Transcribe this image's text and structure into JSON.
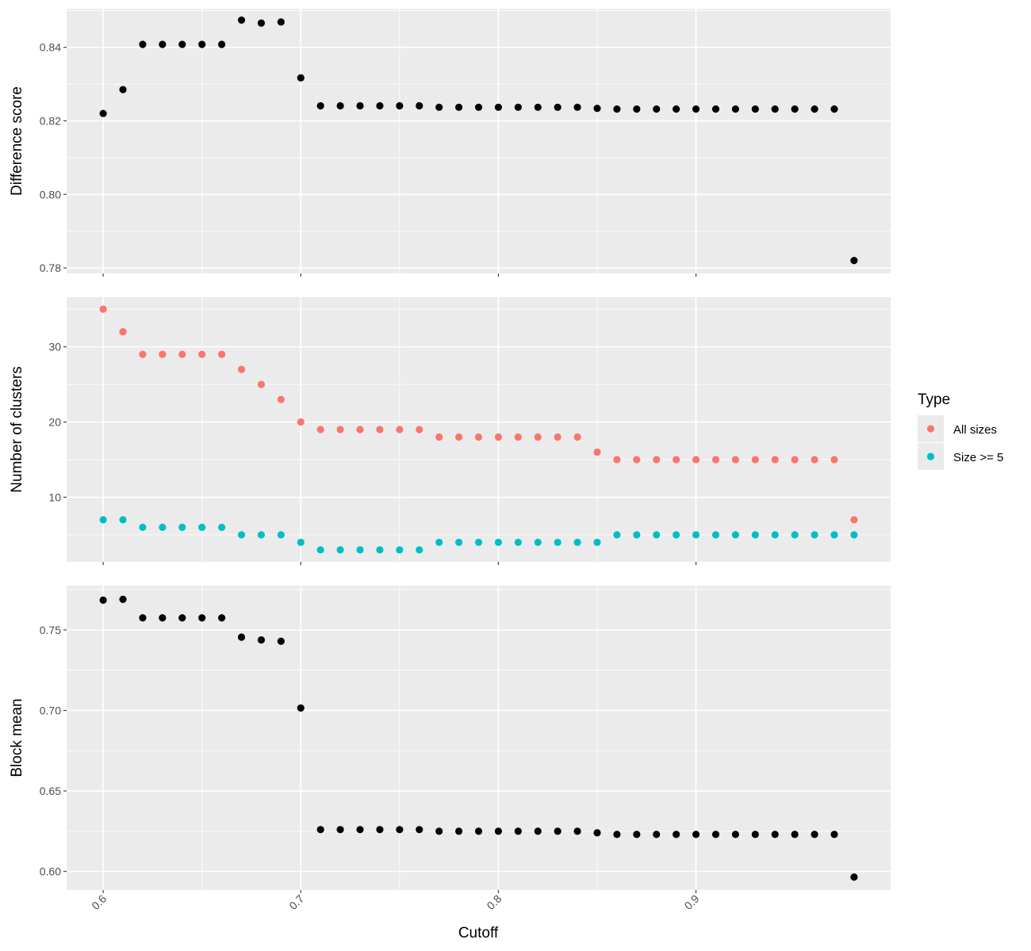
{
  "chart_data": [
    {
      "type": "scatter",
      "panel": "top",
      "ylabel": "Difference score",
      "xlim": [
        0.5815,
        0.9985
      ],
      "ylim": [
        0.7785,
        0.8505
      ],
      "yticks": [
        0.78,
        0.8,
        0.82,
        0.84
      ],
      "ytick_labels": [
        "0.78",
        "0.80",
        "0.82",
        "0.84"
      ],
      "x": [
        0.6,
        0.61,
        0.62,
        0.63,
        0.64,
        0.65,
        0.66,
        0.67,
        0.68,
        0.69,
        0.7,
        0.71,
        0.72,
        0.73,
        0.74,
        0.75,
        0.76,
        0.77,
        0.78,
        0.79,
        0.8,
        0.81,
        0.82,
        0.83,
        0.84,
        0.85,
        0.86,
        0.87,
        0.88,
        0.89,
        0.9,
        0.91,
        0.92,
        0.93,
        0.94,
        0.95,
        0.96,
        0.97,
        0.98
      ],
      "series": [
        {
          "color": "#000000",
          "values": [
            0.822,
            0.8285,
            0.8408,
            0.8408,
            0.8408,
            0.8408,
            0.8408,
            0.8474,
            0.8466,
            0.8469,
            0.8317,
            0.8241,
            0.8241,
            0.8241,
            0.8241,
            0.8241,
            0.8241,
            0.8237,
            0.8237,
            0.8237,
            0.8237,
            0.8237,
            0.8237,
            0.8237,
            0.8237,
            0.8234,
            0.8232,
            0.8232,
            0.8232,
            0.8232,
            0.8232,
            0.8232,
            0.8232,
            0.8232,
            0.8232,
            0.8232,
            0.8232,
            0.8232,
            0.782
          ]
        }
      ]
    },
    {
      "type": "scatter",
      "panel": "middle",
      "ylabel": "Number of clusters",
      "xlim": [
        0.5815,
        0.9985
      ],
      "ylim": [
        1.4,
        36.6
      ],
      "yticks": [
        10,
        20,
        30
      ],
      "ytick_labels": [
        "10",
        "20",
        "30"
      ],
      "x": [
        0.6,
        0.61,
        0.62,
        0.63,
        0.64,
        0.65,
        0.66,
        0.67,
        0.68,
        0.69,
        0.7,
        0.71,
        0.72,
        0.73,
        0.74,
        0.75,
        0.76,
        0.77,
        0.78,
        0.79,
        0.8,
        0.81,
        0.82,
        0.83,
        0.84,
        0.85,
        0.86,
        0.87,
        0.88,
        0.89,
        0.9,
        0.91,
        0.92,
        0.93,
        0.94,
        0.95,
        0.96,
        0.97,
        0.98
      ],
      "series": [
        {
          "name": "All sizes",
          "color": "#F8766D",
          "values": [
            35,
            32,
            29,
            29,
            29,
            29,
            29,
            27,
            25,
            23,
            20,
            19,
            19,
            19,
            19,
            19,
            19,
            18,
            18,
            18,
            18,
            18,
            18,
            18,
            18,
            16,
            15,
            15,
            15,
            15,
            15,
            15,
            15,
            15,
            15,
            15,
            15,
            15,
            7
          ]
        },
        {
          "name": "Size >= 5",
          "color": "#00BFC4",
          "values": [
            7,
            7,
            6,
            6,
            6,
            6,
            6,
            5,
            5,
            5,
            4,
            3,
            3,
            3,
            3,
            3,
            3,
            4,
            4,
            4,
            4,
            4,
            4,
            4,
            4,
            4,
            5,
            5,
            5,
            5,
            5,
            5,
            5,
            5,
            5,
            5,
            5,
            5,
            5
          ]
        }
      ],
      "legend": {
        "title": "Type",
        "position": "right",
        "entries": [
          "All sizes",
          "Size >= 5"
        ]
      }
    },
    {
      "type": "scatter",
      "panel": "bottom",
      "ylabel": "Block mean",
      "xlabel": "Cutoff",
      "xlim": [
        0.5815,
        0.9985
      ],
      "ylim": [
        0.5885,
        0.7775
      ],
      "yticks": [
        0.6,
        0.65,
        0.7,
        0.75
      ],
      "ytick_labels": [
        "0.60",
        "0.65",
        "0.70",
        "0.75"
      ],
      "xticks": [
        0.6,
        0.7,
        0.8,
        0.9
      ],
      "xtick_labels": [
        "0.6",
        "0.7",
        "0.8",
        "0.9"
      ],
      "x": [
        0.6,
        0.61,
        0.62,
        0.63,
        0.64,
        0.65,
        0.66,
        0.67,
        0.68,
        0.69,
        0.7,
        0.71,
        0.72,
        0.73,
        0.74,
        0.75,
        0.76,
        0.77,
        0.78,
        0.79,
        0.8,
        0.81,
        0.82,
        0.83,
        0.84,
        0.85,
        0.86,
        0.87,
        0.88,
        0.89,
        0.9,
        0.91,
        0.92,
        0.93,
        0.94,
        0.95,
        0.96,
        0.97,
        0.98
      ],
      "series": [
        {
          "color": "#000000",
          "values": [
            0.7685,
            0.769,
            0.7575,
            0.7575,
            0.7575,
            0.7575,
            0.7575,
            0.7455,
            0.7438,
            0.743,
            0.7015,
            0.626,
            0.626,
            0.626,
            0.626,
            0.626,
            0.626,
            0.625,
            0.625,
            0.625,
            0.625,
            0.625,
            0.625,
            0.625,
            0.625,
            0.624,
            0.623,
            0.623,
            0.623,
            0.623,
            0.623,
            0.623,
            0.623,
            0.623,
            0.623,
            0.623,
            0.623,
            0.623,
            0.5965
          ]
        }
      ]
    }
  ]
}
